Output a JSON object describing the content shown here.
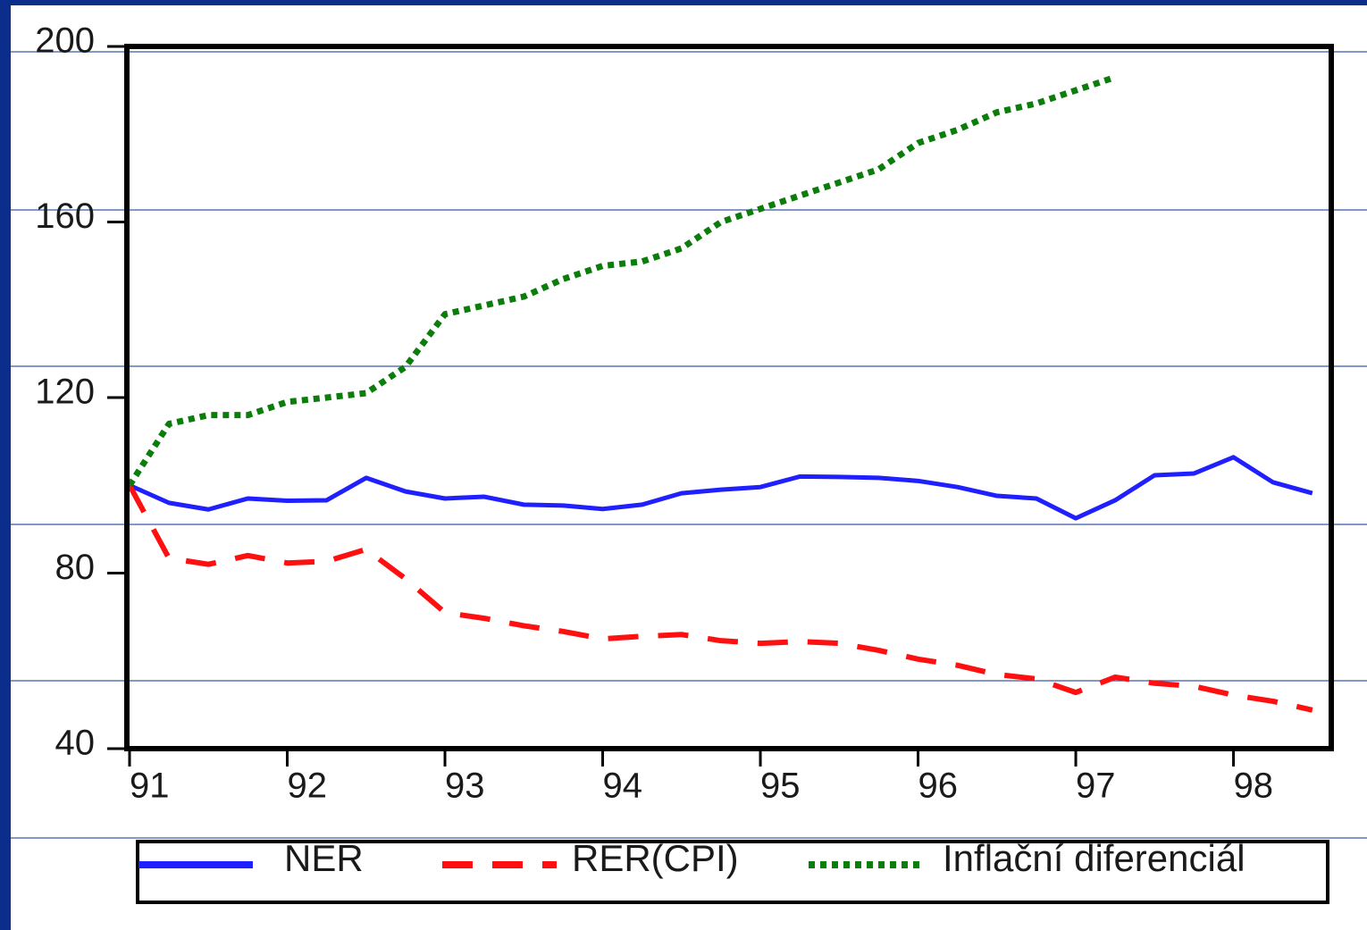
{
  "chart_data": {
    "type": "line",
    "x": [
      91,
      91.25,
      91.5,
      91.75,
      92,
      92.25,
      92.5,
      92.75,
      93,
      93.25,
      93.5,
      93.75,
      94,
      94.25,
      94.5,
      94.75,
      95,
      95.25,
      95.5,
      95.75,
      96,
      96.25,
      96.5,
      96.75,
      97,
      97.25,
      97.5,
      97.75,
      98,
      98.25,
      98.5
    ],
    "series": [
      {
        "name": "NER",
        "color": "#1f1fff",
        "style": "solid",
        "values": [
          100,
          96,
          94.5,
          97,
          96.5,
          96.6,
          101.7,
          98.6,
          97,
          97.4,
          95.6,
          95.4,
          94.6,
          95.6,
          98.2,
          99,
          99.6,
          102,
          101.9,
          101.7,
          101,
          99.6,
          97.6,
          97,
          92.5,
          96.6,
          102.3,
          102.7,
          106.4,
          100.7,
          98.2
        ]
      },
      {
        "name": "RER(CPI)",
        "color": "#ff1010",
        "style": "dashed",
        "values": [
          100,
          83.4,
          82,
          84,
          82.3,
          82.7,
          85.4,
          78.7,
          71,
          69.7,
          68,
          66.7,
          65,
          65.6,
          66,
          64.6,
          64,
          64.4,
          64,
          62.4,
          60.4,
          59,
          56.9,
          55.9,
          52.8,
          56.3,
          54.9,
          54.2,
          52.2,
          50.8,
          48.8
        ]
      },
      {
        "name": "Inflační diferenciál",
        "color": "#0a7d0a",
        "style": "dotted",
        "values": [
          100,
          114,
          116,
          116,
          119,
          120,
          121,
          127,
          139,
          141,
          143,
          147,
          150,
          151,
          154,
          160,
          163,
          166,
          169,
          172,
          178,
          181,
          185,
          187,
          190,
          193,
          null,
          null,
          null,
          null,
          null
        ]
      }
    ],
    "xlim": [
      91,
      98.62
    ],
    "xticks": [
      91,
      92,
      93,
      94,
      95,
      96,
      97,
      98
    ],
    "ylim": [
      40,
      200
    ],
    "yticks": [
      40,
      80,
      120,
      160,
      200
    ]
  }
}
